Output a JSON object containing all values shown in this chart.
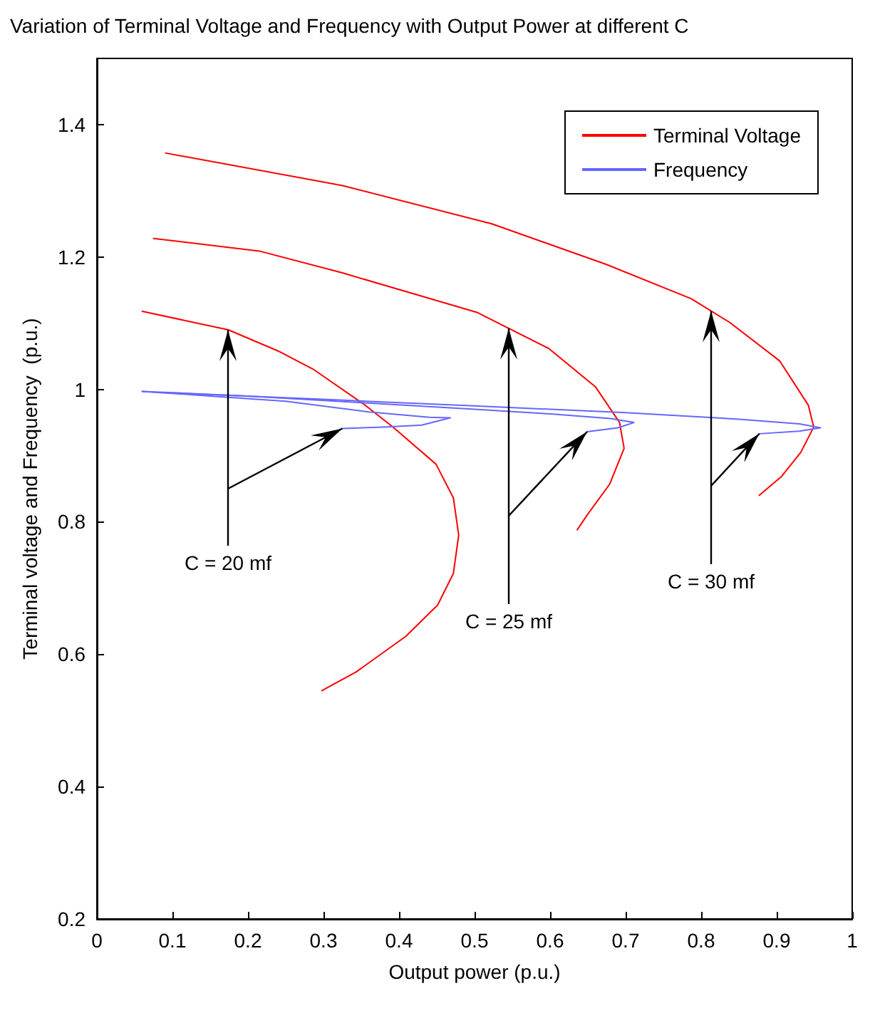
{
  "chart_data": {
    "type": "line",
    "title": "Variation of Terminal Voltage and Frequency with Output Power at different C",
    "xlabel": "Output power (p.u.)",
    "ylabel": "Terminal voltage and Frequency  (p.u.)",
    "xlim": [
      0,
      1
    ],
    "xticks": [
      0,
      0.1,
      0.2,
      0.3,
      0.4,
      0.5,
      0.6,
      0.7,
      0.8,
      0.9,
      1
    ],
    "ylim": [
      0.2,
      1.5
    ],
    "yticks": [
      0.2,
      0.4,
      0.6,
      0.8,
      1,
      1.2,
      1.4
    ],
    "grid": false,
    "legend": "top right",
    "marker": "none",
    "line_style": "solid",
    "series": [
      {
        "name": "Terminal Voltage",
        "color": "#ff0000",
        "x": [
          0.06,
          0.174,
          0.24,
          0.287,
          0.353,
          0.392,
          0.449,
          0.472,
          0.479,
          0.472,
          0.451,
          0.409,
          0.343,
          0.298
        ],
        "values": [
          1.118,
          1.09,
          1.058,
          1.03,
          0.978,
          0.943,
          0.887,
          0.836,
          0.78,
          0.722,
          0.674,
          0.627,
          0.573,
          0.545
        ]
      },
      {
        "color": "#ff0000",
        "x": [
          0.075,
          0.215,
          0.325,
          0.504,
          0.598,
          0.66,
          0.692,
          0.698,
          0.679,
          0.649,
          0.636
        ],
        "values": [
          1.228,
          1.209,
          1.176,
          1.116,
          1.062,
          1.004,
          0.95,
          0.911,
          0.857,
          0.81,
          0.788
        ]
      },
      {
        "color": "#ff0000",
        "x": [
          0.091,
          0.325,
          0.523,
          0.674,
          0.787,
          0.838,
          0.904,
          0.942,
          0.949,
          0.932,
          0.906,
          0.877
        ],
        "values": [
          1.357,
          1.308,
          1.25,
          1.189,
          1.137,
          1.101,
          1.043,
          0.976,
          0.943,
          0.905,
          0.868,
          0.84
        ]
      },
      {
        "name": "Frequency",
        "color": "#6666ff",
        "x": [
          0.06,
          0.15,
          0.25,
          0.36,
          0.44,
          0.468,
          0.43,
          0.38,
          0.325
        ],
        "values": [
          0.997,
          0.99,
          0.982,
          0.966,
          0.958,
          0.957,
          0.946,
          0.943,
          0.941
        ]
      },
      {
        "color": "#6666ff",
        "x": [
          0.06,
          0.2,
          0.35,
          0.5,
          0.6,
          0.68,
          0.711,
          0.69,
          0.649
        ],
        "values": [
          0.997,
          0.99,
          0.98,
          0.97,
          0.963,
          0.956,
          0.95,
          0.942,
          0.936
        ]
      },
      {
        "color": "#6666ff",
        "x": [
          0.09,
          0.3,
          0.5,
          0.7,
          0.85,
          0.93,
          0.958,
          0.93,
          0.877
        ],
        "values": [
          0.995,
          0.985,
          0.975,
          0.965,
          0.955,
          0.948,
          0.942,
          0.937,
          0.933
        ]
      }
    ],
    "annotations": [
      "C = 20 mf",
      "C = 25 mf",
      "C = 30 mf"
    ]
  }
}
